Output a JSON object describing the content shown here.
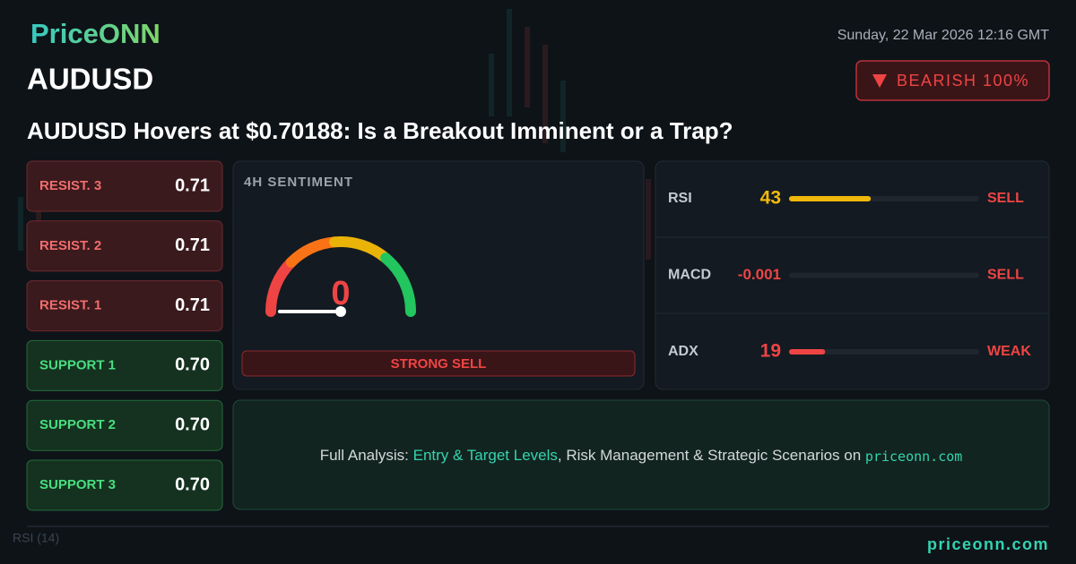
{
  "brand": "PriceONN",
  "timestamp": "Sunday, 22 Mar 2026 12:16 GMT",
  "symbol": "AUDUSD",
  "badge": "BEARISH 100%",
  "headline": "AUDUSD Hovers at $0.70188: Is a Breakout Imminent or a Trap?",
  "levels": [
    {
      "label": "RESIST. 3",
      "value": "0.71",
      "kind": "resist"
    },
    {
      "label": "RESIST. 2",
      "value": "0.71",
      "kind": "resist"
    },
    {
      "label": "RESIST. 1",
      "value": "0.71",
      "kind": "resist"
    },
    {
      "label": "SUPPORT 1",
      "value": "0.70",
      "kind": "support"
    },
    {
      "label": "SUPPORT 2",
      "value": "0.70",
      "kind": "support"
    },
    {
      "label": "SUPPORT 3",
      "value": "0.70",
      "kind": "support"
    }
  ],
  "sentiment": {
    "title": "4H SENTIMENT",
    "value": 0,
    "range": [
      0,
      100
    ],
    "verdict": "STRONG SELL"
  },
  "indicators": [
    {
      "name": "RSI",
      "value": 43,
      "scale": [
        0,
        100
      ],
      "color": "#f0b90b",
      "signal": "SELL"
    },
    {
      "name": "MACD",
      "value": -0.001,
      "color": "#ef4444",
      "signal": "SELL"
    },
    {
      "name": "ADX",
      "value": 19,
      "scale": [
        0,
        100
      ],
      "color": "#ef4444",
      "signal": "WEAK"
    }
  ],
  "cta": {
    "lead": "Full Analysis:",
    "highlight": "Entry & Target Levels",
    "rest": ", Risk Management & Strategic Scenarios on",
    "site": "priceonn.com"
  },
  "background_label": "RSI (14)",
  "footer_site": "priceonn.com"
}
